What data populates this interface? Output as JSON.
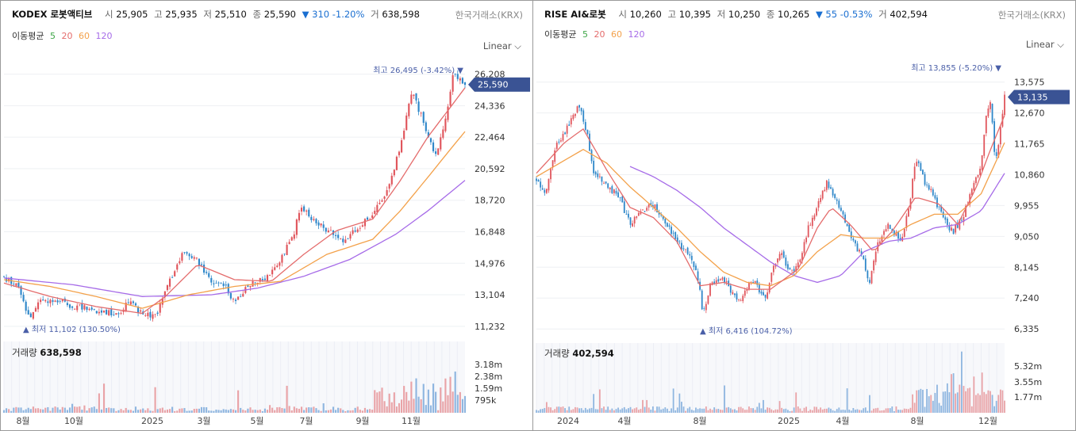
{
  "colors": {
    "up": "#e0555c",
    "down": "#2e87c9",
    "ma5": "#3fa648",
    "ma20": "#e46c6c",
    "ma60": "#f3a14a",
    "ma120": "#a66be8",
    "badge": "#3a5394",
    "note": "#4a5fa8"
  },
  "left": {
    "name": "KODEX 로봇액티브",
    "open_label": "시",
    "open": "25,905",
    "high_label": "고",
    "high": "25,935",
    "low_label": "저",
    "low": "25,510",
    "close_label": "종",
    "close": "25,590",
    "change": "▼ 310 -1.20%",
    "vol_label": "거",
    "volume": "638,598",
    "exchange": "한국거래소(KRX)",
    "ma_label": "이동평균",
    "ma_periods": [
      "5",
      "20",
      "60",
      "120"
    ],
    "scale": "Linear",
    "high_note": "최고 26,495 (-3.42%) ▼",
    "low_note": "▲ 최저 11,102 (130.50%)",
    "current": "25,590",
    "volume_title": "거래량",
    "volume_value": "638,598"
  },
  "right": {
    "name": "RISE AI&로봇",
    "open_label": "시",
    "open": "10,260",
    "high_label": "고",
    "high": "10,395",
    "low_label": "저",
    "low": "10,250",
    "close_label": "종",
    "close": "10,265",
    "change": "▼ 55 -0.53%",
    "vol_label": "거",
    "volume": "402,594",
    "exchange": "한국거래소(KRX)",
    "ma_label": "이동평균",
    "ma_periods": [
      "5",
      "20",
      "60",
      "120"
    ],
    "scale": "Linear",
    "high_note": "최고 13,855 (-5.20%) ▼",
    "low_note": "▲ 최저 6,416 (104.72%)",
    "current": "13,135",
    "volume_title": "거래량",
    "volume_value": "402,594"
  },
  "chart_data": [
    {
      "type": "candlestick",
      "title": "KODEX 로봇액티브",
      "y_ticks": [
        "26,208",
        "24,336",
        "22,464",
        "20,592",
        "18,720",
        "16,848",
        "14,976",
        "13,104",
        "11,232"
      ],
      "ylim": [
        10800,
        26800
      ],
      "x_ticks": [
        "8월",
        "10월",
        "2025",
        "3월",
        "5월",
        "7월",
        "9월",
        "11월"
      ],
      "close_path": [
        [
          0,
          14100
        ],
        [
          0.03,
          13600
        ],
        [
          0.055,
          11700
        ],
        [
          0.08,
          12700
        ],
        [
          0.11,
          12900
        ],
        [
          0.15,
          12400
        ],
        [
          0.2,
          12200
        ],
        [
          0.25,
          12000
        ],
        [
          0.27,
          12800
        ],
        [
          0.3,
          11900
        ],
        [
          0.33,
          11800
        ],
        [
          0.36,
          14000
        ],
        [
          0.39,
          15600
        ],
        [
          0.42,
          15100
        ],
        [
          0.45,
          13800
        ],
        [
          0.48,
          13600
        ],
        [
          0.5,
          12600
        ],
        [
          0.53,
          13600
        ],
        [
          0.57,
          14100
        ],
        [
          0.6,
          15200
        ],
        [
          0.63,
          16900
        ],
        [
          0.645,
          18400
        ],
        [
          0.67,
          17500
        ],
        [
          0.7,
          17000
        ],
        [
          0.74,
          16300
        ],
        [
          0.77,
          17100
        ],
        [
          0.8,
          17900
        ],
        [
          0.83,
          19300
        ],
        [
          0.86,
          21800
        ],
        [
          0.885,
          25300
        ],
        [
          0.91,
          23300
        ],
        [
          0.935,
          21300
        ],
        [
          0.96,
          23800
        ],
        [
          0.975,
          26200
        ],
        [
          0.99,
          25800
        ],
        [
          1.0,
          25590
        ]
      ],
      "ma20_path": [
        [
          0,
          13800
        ],
        [
          0.1,
          13000
        ],
        [
          0.2,
          12400
        ],
        [
          0.3,
          12000
        ],
        [
          0.35,
          13000
        ],
        [
          0.42,
          14900
        ],
        [
          0.5,
          14000
        ],
        [
          0.58,
          13900
        ],
        [
          0.65,
          15500
        ],
        [
          0.72,
          16900
        ],
        [
          0.8,
          17600
        ],
        [
          0.86,
          19900
        ],
        [
          0.92,
          22500
        ],
        [
          0.97,
          24300
        ],
        [
          1.0,
          25400
        ]
      ],
      "ma60_path": [
        [
          0,
          14000
        ],
        [
          0.1,
          13600
        ],
        [
          0.2,
          13000
        ],
        [
          0.3,
          12300
        ],
        [
          0.4,
          13100
        ],
        [
          0.5,
          13600
        ],
        [
          0.6,
          13900
        ],
        [
          0.7,
          15500
        ],
        [
          0.8,
          16400
        ],
        [
          0.86,
          18100
        ],
        [
          0.92,
          20100
        ],
        [
          0.97,
          21800
        ],
        [
          1.0,
          22800
        ]
      ],
      "ma120_path": [
        [
          0,
          14100
        ],
        [
          0.15,
          13700
        ],
        [
          0.3,
          13000
        ],
        [
          0.45,
          13100
        ],
        [
          0.55,
          13500
        ],
        [
          0.65,
          14200
        ],
        [
          0.75,
          15200
        ],
        [
          0.85,
          16700
        ],
        [
          0.92,
          18100
        ],
        [
          1.0,
          19900
        ]
      ],
      "volume_ticks": [
        "3.18m",
        "2.38m",
        "1.59m",
        "795k"
      ],
      "volume_peak": 3180000
    },
    {
      "type": "candlestick",
      "title": "RISE AI&로봇",
      "y_ticks": [
        "13,575",
        "12,670",
        "11,765",
        "10,860",
        "9,955",
        "9,050",
        "8,145",
        "7,240",
        "6,335"
      ],
      "ylim": [
        6200,
        14100
      ],
      "x_ticks": [
        "2024",
        "4월",
        "8월",
        "2025",
        "4월",
        "8월",
        "12월"
      ],
      "close_path": [
        [
          0,
          10700
        ],
        [
          0.02,
          10300
        ],
        [
          0.04,
          11700
        ],
        [
          0.07,
          12300
        ],
        [
          0.09,
          12900
        ],
        [
          0.11,
          12000
        ],
        [
          0.12,
          11000
        ],
        [
          0.15,
          10600
        ],
        [
          0.18,
          10100
        ],
        [
          0.2,
          9400
        ],
        [
          0.22,
          9700
        ],
        [
          0.25,
          10000
        ],
        [
          0.28,
          9400
        ],
        [
          0.31,
          8700
        ],
        [
          0.33,
          8500
        ],
        [
          0.35,
          7500
        ],
        [
          0.355,
          6700
        ],
        [
          0.37,
          7600
        ],
        [
          0.4,
          7800
        ],
        [
          0.43,
          7100
        ],
        [
          0.46,
          7800
        ],
        [
          0.49,
          7200
        ],
        [
          0.5,
          7900
        ],
        [
          0.52,
          8600
        ],
        [
          0.54,
          8000
        ],
        [
          0.56,
          8200
        ],
        [
          0.58,
          9300
        ],
        [
          0.6,
          9900
        ],
        [
          0.62,
          10600
        ],
        [
          0.63,
          10400
        ],
        [
          0.65,
          9800
        ],
        [
          0.67,
          9100
        ],
        [
          0.7,
          8300
        ],
        [
          0.71,
          7600
        ],
        [
          0.73,
          8900
        ],
        [
          0.75,
          9400
        ],
        [
          0.78,
          8900
        ],
        [
          0.8,
          10300
        ],
        [
          0.81,
          11400
        ],
        [
          0.83,
          10600
        ],
        [
          0.85,
          10200
        ],
        [
          0.87,
          9500
        ],
        [
          0.89,
          9200
        ],
        [
          0.91,
          9600
        ],
        [
          0.93,
          10400
        ],
        [
          0.95,
          11200
        ],
        [
          0.96,
          12500
        ],
        [
          0.97,
          13000
        ],
        [
          0.98,
          11200
        ],
        [
          0.99,
          12100
        ],
        [
          1.0,
          13135
        ]
      ],
      "ma20_path": [
        [
          0,
          10900
        ],
        [
          0.06,
          11800
        ],
        [
          0.1,
          12200
        ],
        [
          0.15,
          11000
        ],
        [
          0.2,
          9900
        ],
        [
          0.25,
          9600
        ],
        [
          0.3,
          8900
        ],
        [
          0.35,
          7600
        ],
        [
          0.4,
          7700
        ],
        [
          0.45,
          7500
        ],
        [
          0.5,
          7500
        ],
        [
          0.56,
          8100
        ],
        [
          0.6,
          9300
        ],
        [
          0.63,
          9900
        ],
        [
          0.67,
          9400
        ],
        [
          0.72,
          8600
        ],
        [
          0.76,
          9200
        ],
        [
          0.81,
          10200
        ],
        [
          0.86,
          10000
        ],
        [
          0.9,
          9400
        ],
        [
          0.94,
          10500
        ],
        [
          0.97,
          11600
        ],
        [
          1.0,
          12600
        ]
      ],
      "ma60_path": [
        [
          0,
          10800
        ],
        [
          0.1,
          11600
        ],
        [
          0.15,
          11200
        ],
        [
          0.2,
          10500
        ],
        [
          0.25,
          9900
        ],
        [
          0.3,
          9300
        ],
        [
          0.35,
          8600
        ],
        [
          0.4,
          8000
        ],
        [
          0.45,
          7700
        ],
        [
          0.5,
          7600
        ],
        [
          0.55,
          7900
        ],
        [
          0.6,
          8600
        ],
        [
          0.65,
          9100
        ],
        [
          0.7,
          9000
        ],
        [
          0.75,
          9000
        ],
        [
          0.8,
          9400
        ],
        [
          0.85,
          9700
        ],
        [
          0.9,
          9700
        ],
        [
          0.95,
          10300
        ],
        [
          1.0,
          11800
        ]
      ],
      "ma120_path": [
        [
          0.2,
          11100
        ],
        [
          0.25,
          10800
        ],
        [
          0.3,
          10400
        ],
        [
          0.35,
          9900
        ],
        [
          0.4,
          9300
        ],
        [
          0.45,
          8800
        ],
        [
          0.5,
          8300
        ],
        [
          0.55,
          7900
        ],
        [
          0.6,
          7700
        ],
        [
          0.65,
          7900
        ],
        [
          0.7,
          8600
        ],
        [
          0.75,
          8900
        ],
        [
          0.8,
          9000
        ],
        [
          0.85,
          9300
        ],
        [
          0.9,
          9400
        ],
        [
          0.95,
          9800
        ],
        [
          1.0,
          10900
        ]
      ],
      "volume_ticks": [
        "5.32m",
        "3.55m",
        "1.77m"
      ],
      "volume_peak": 5320000
    }
  ]
}
